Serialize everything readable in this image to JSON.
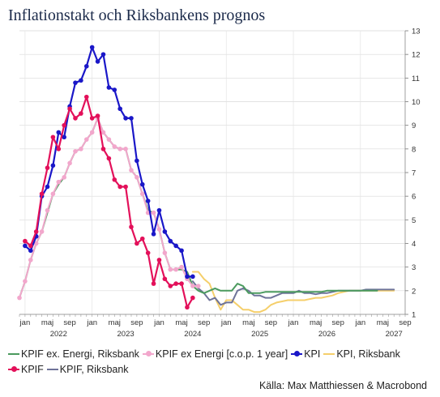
{
  "title": "Inflationstakt och Riksbankens prognos",
  "source": "Källa: Max Matthiessen & Macrobond",
  "chart_data": {
    "type": "line",
    "ylim": [
      1,
      13
    ],
    "yticks": [
      1,
      2,
      3,
      4,
      5,
      6,
      7,
      8,
      9,
      10,
      11,
      12,
      13
    ],
    "y_axis_side": "right",
    "x_range": [
      "2021-12",
      "2027-09"
    ],
    "x_tick_labels": [
      {
        "m": "2022-01",
        "label": "jan"
      },
      {
        "m": "2022-05",
        "label": "maj"
      },
      {
        "m": "2022-09",
        "label": "sep"
      },
      {
        "m": "2023-01",
        "label": "jan"
      },
      {
        "m": "2023-05",
        "label": "maj"
      },
      {
        "m": "2023-09",
        "label": "sep"
      },
      {
        "m": "2024-01",
        "label": "jan"
      },
      {
        "m": "2024-05",
        "label": "maj"
      },
      {
        "m": "2024-09",
        "label": "sep"
      },
      {
        "m": "2025-01",
        "label": "jan"
      },
      {
        "m": "2025-05",
        "label": "maj"
      },
      {
        "m": "2025-09",
        "label": "sep"
      },
      {
        "m": "2026-01",
        "label": "jan"
      },
      {
        "m": "2026-05",
        "label": "maj"
      },
      {
        "m": "2026-09",
        "label": "sep"
      },
      {
        "m": "2027-01",
        "label": "jan"
      },
      {
        "m": "2027-05",
        "label": "maj"
      },
      {
        "m": "2027-09",
        "label": "sep"
      }
    ],
    "year_labels": [
      {
        "m": "2022-07",
        "label": "2022"
      },
      {
        "m": "2023-07",
        "label": "2023"
      },
      {
        "m": "2024-07",
        "label": "2024"
      },
      {
        "m": "2025-07",
        "label": "2025"
      },
      {
        "m": "2026-07",
        "label": "2026"
      },
      {
        "m": "2027-07",
        "label": "2027"
      }
    ],
    "grid": true,
    "legend_position": "bottom",
    "series": [
      {
        "name": "KPIF ex. Energi, Riksbank",
        "color": "#4a9a5e",
        "markers": false,
        "width": 2,
        "start": "2021-12",
        "values": [
          1.7,
          2.4,
          3.3,
          4.0,
          4.5,
          5.3,
          6.1,
          6.5,
          6.8,
          7.4,
          7.9,
          8.0,
          8.4,
          8.7,
          9.3,
          8.7,
          8.4,
          8.1,
          8.0,
          8.0,
          7.1,
          6.8,
          6.1,
          5.4,
          5.3,
          4.6,
          3.6,
          2.9,
          2.9,
          2.9,
          2.8,
          2.2,
          2.0,
          1.9,
          2.0,
          2.1,
          2.0,
          2.0,
          2.0,
          2.3,
          2.2,
          1.9,
          1.9,
          1.9,
          1.95,
          1.95,
          1.95,
          1.95,
          1.95,
          1.95,
          1.95,
          1.95,
          1.95,
          1.95,
          1.95,
          2.0,
          2.0,
          2.0,
          2.0,
          2.0,
          2.0,
          2.0,
          2.0,
          2.0,
          2.0
        ]
      },
      {
        "name": "KPIF ex Energi [c.o.p. 1 year]",
        "color": "#f2a7cc",
        "markers": true,
        "width": 2,
        "start": "2021-12",
        "values": [
          1.7,
          2.4,
          3.3,
          4.0,
          4.5,
          5.4,
          6.1,
          6.6,
          6.8,
          7.4,
          7.9,
          8.0,
          8.4,
          8.7,
          9.3,
          8.7,
          8.4,
          8.1,
          8.0,
          8.0,
          7.1,
          6.8,
          6.1,
          5.3,
          5.3,
          4.6,
          3.6,
          2.9,
          2.9,
          3.0,
          2.5,
          2.2,
          2.2
        ]
      },
      {
        "name": "KPI",
        "color": "#1a17c8",
        "markers": true,
        "width": 2.2,
        "start": "2022-01",
        "values": [
          3.9,
          3.7,
          4.3,
          6.0,
          6.4,
          7.3,
          8.7,
          8.5,
          9.8,
          10.8,
          10.9,
          11.5,
          12.3,
          11.7,
          12.0,
          10.6,
          10.5,
          9.7,
          9.3,
          9.3,
          7.5,
          6.5,
          5.8,
          4.4,
          5.4,
          4.5,
          4.1,
          3.9,
          3.7,
          2.6,
          2.6
        ]
      },
      {
        "name": "KPI, Riksbank",
        "color": "#f5cf6b",
        "markers": false,
        "width": 2,
        "start": "2024-07",
        "values": [
          2.8,
          2.8,
          2.5,
          2.3,
          1.7,
          1.2,
          1.6,
          1.6,
          1.4,
          1.2,
          1.2,
          1.1,
          1.1,
          1.2,
          1.4,
          1.5,
          1.55,
          1.6,
          1.6,
          1.6,
          1.6,
          1.65,
          1.7,
          1.7,
          1.75,
          1.8,
          1.9,
          1.95,
          2.0,
          2.0,
          2.0,
          2.0,
          2.0,
          2.0,
          2.0,
          2.0,
          2.0
        ]
      },
      {
        "name": "KPIF",
        "color": "#e3105a",
        "markers": true,
        "width": 2.2,
        "start": "2022-01",
        "values": [
          4.1,
          3.9,
          4.5,
          6.1,
          7.2,
          8.5,
          8.0,
          9.0,
          9.7,
          9.3,
          9.5,
          10.2,
          9.3,
          9.4,
          8.0,
          7.6,
          6.7,
          6.4,
          6.4,
          4.7,
          4.0,
          4.2,
          3.6,
          2.3,
          3.3,
          2.5,
          2.2,
          2.3,
          2.3,
          1.3,
          1.7
        ]
      },
      {
        "name": "KPIF, Riksbank",
        "color": "#6e7399",
        "markers": false,
        "width": 2,
        "start": "2024-07",
        "values": [
          2.4,
          2.1,
          1.9,
          1.6,
          1.7,
          1.4,
          1.5,
          1.5,
          2.0,
          2.1,
          2.0,
          1.8,
          1.8,
          1.7,
          1.7,
          1.8,
          1.9,
          1.9,
          1.9,
          2.0,
          1.9,
          1.9,
          1.85,
          1.9,
          1.9,
          1.95,
          2.0,
          2.0,
          2.0,
          2.0,
          2.0,
          2.05,
          2.05,
          2.05,
          2.05,
          2.05,
          2.05
        ]
      }
    ]
  }
}
